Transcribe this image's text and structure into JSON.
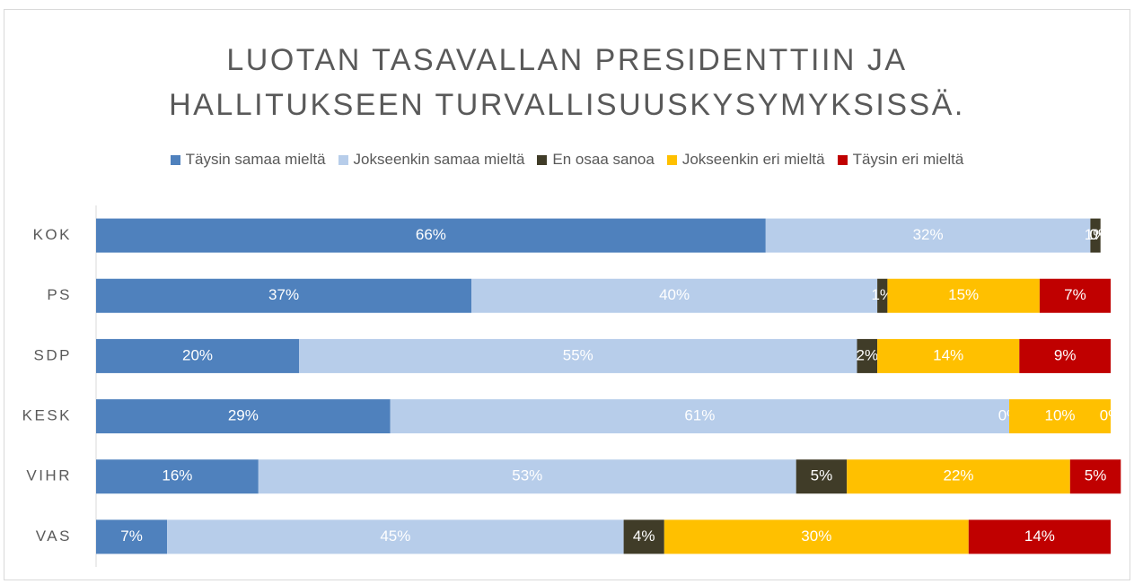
{
  "chart_data": {
    "type": "bar",
    "orientation": "horizontal",
    "stacked": true,
    "title": [
      "LUOTAN TASAVALLAN PRESIDENTTIIN JA",
      "HALLITUKSEEN TURVALLISUUSKYSYMYKSISSÄ."
    ],
    "categories": [
      "KOK",
      "PS",
      "SDP",
      "KESK",
      "VIHR",
      "VAS"
    ],
    "xlim": [
      0,
      100
    ],
    "legend": "top",
    "series": [
      {
        "name": "Täysin samaa mieltä",
        "color": "#4f81bd",
        "values": [
          66,
          37,
          20,
          29,
          16,
          7
        ],
        "value_labels": [
          "66%",
          "37%",
          "20%",
          "29%",
          "16%",
          "7%"
        ]
      },
      {
        "name": "Jokseenkin samaa mieltä",
        "color": "#b7cdea",
        "values": [
          32,
          40,
          55,
          61,
          53,
          45
        ],
        "value_labels": [
          "32%",
          "40%",
          "55%",
          "61%",
          "53%",
          "45%"
        ]
      },
      {
        "name": "En osaa sanoa",
        "color": "#403c28",
        "values": [
          1,
          1,
          2,
          0,
          5,
          4
        ],
        "value_labels": [
          "1%",
          "1%",
          "2%",
          "0%",
          "5%",
          "4%"
        ]
      },
      {
        "name": "Jokseenkin eri mieltä",
        "color": "#ffc000",
        "values": [
          0,
          15,
          14,
          10,
          22,
          30
        ],
        "value_labels": [
          "0%",
          "15%",
          "14%",
          "10%",
          "22%",
          "30%"
        ]
      },
      {
        "name": "Täysin eri mieltä",
        "color": "#c00000",
        "values": [
          0,
          7,
          9,
          0,
          5,
          14
        ],
        "value_labels": [
          "0%",
          "7%",
          "9%",
          "0%",
          "5%",
          "14%"
        ]
      }
    ]
  }
}
